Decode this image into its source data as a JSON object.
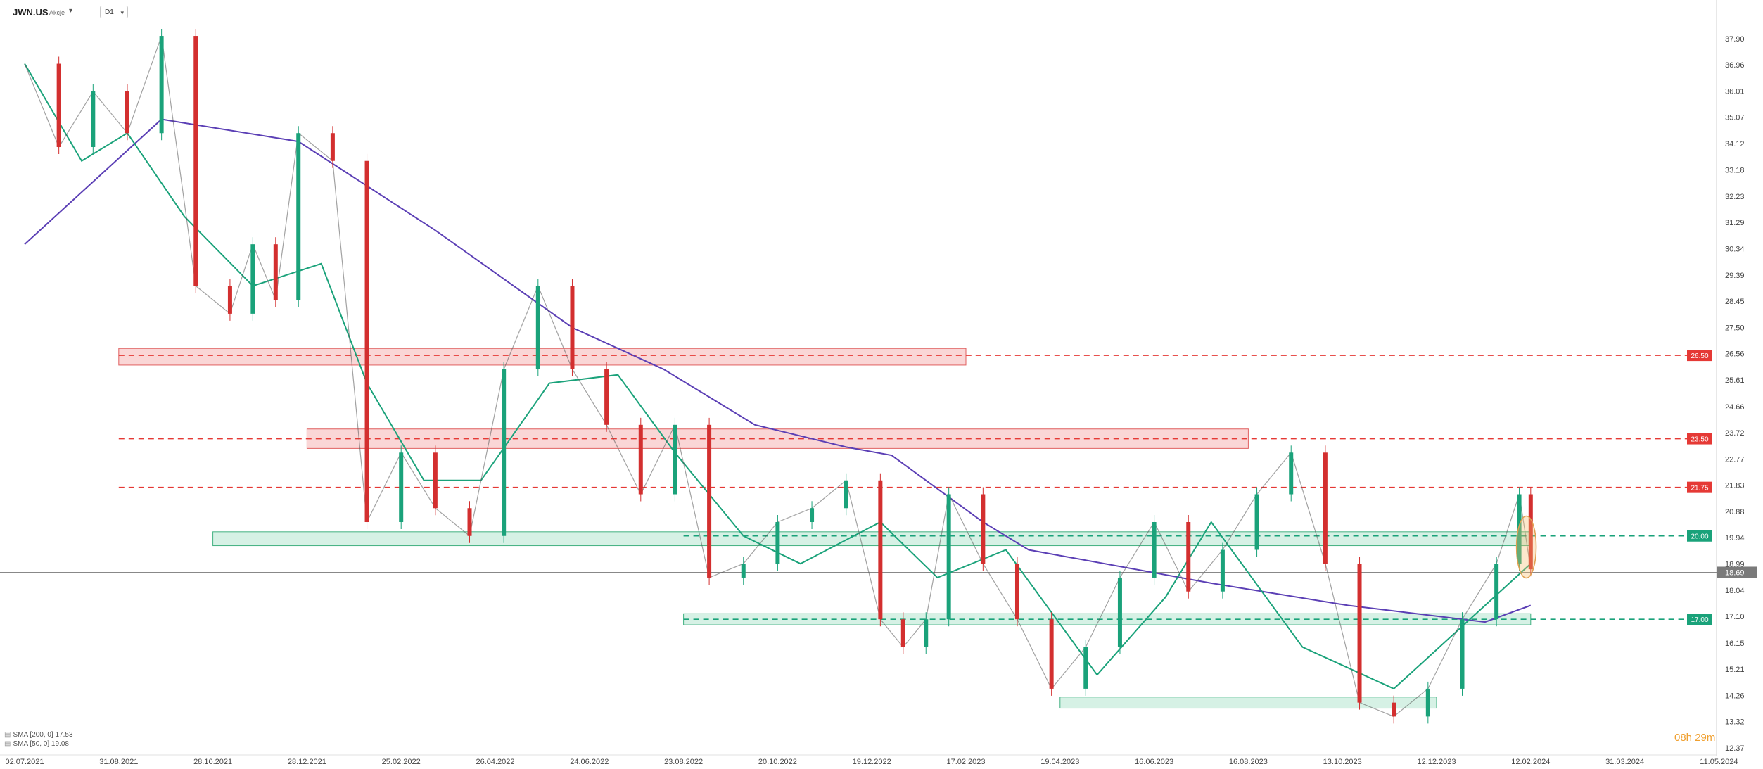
{
  "header": {
    "symbol": "JWN.US",
    "asset_class": "Akcje",
    "timeframe": "D1"
  },
  "legend": [
    {
      "text": "SMA [200, 0] 17.53",
      "color": "#5b3fb5"
    },
    {
      "text": "SMA [50, 0] 19.08",
      "color": "#1aa27a"
    }
  ],
  "timer": "08h 29m",
  "chart_data": {
    "type": "candlestick",
    "title": "",
    "y_ticks": [
      37.9,
      36.96,
      36.01,
      35.07,
      34.12,
      33.18,
      32.23,
      31.29,
      30.34,
      29.39,
      28.45,
      27.5,
      26.56,
      25.61,
      24.66,
      23.72,
      22.77,
      21.83,
      20.88,
      19.94,
      18.99,
      18.04,
      17.1,
      16.15,
      15.21,
      14.26,
      13.32,
      12.37
    ],
    "x_ticks": [
      "02.07.2021",
      "31.08.2021",
      "28.10.2021",
      "28.12.2021",
      "25.02.2022",
      "26.04.2022",
      "24.06.2022",
      "23.08.2022",
      "20.10.2022",
      "19.12.2022",
      "17.02.2023",
      "19.04.2023",
      "16.06.2023",
      "16.08.2023",
      "13.10.2023",
      "12.12.2023",
      "12.02.2024",
      "31.03.2024",
      "11.05.2024"
    ],
    "ylim": [
      12.3,
      38.6
    ],
    "last_price": 18.69,
    "price_levels": [
      {
        "value": 26.5,
        "label": "26.50",
        "color": "#e53935"
      },
      {
        "value": 23.5,
        "label": "23.50",
        "color": "#e53935"
      },
      {
        "value": 21.75,
        "label": "21.75",
        "color": "#e53935"
      },
      {
        "value": 20.0,
        "label": "20.00",
        "color": "#1aa27a"
      },
      {
        "value": 17.0,
        "label": "17.00",
        "color": "#1aa27a"
      }
    ],
    "zones": [
      {
        "from": "31.08.2021",
        "to": "17.02.2023",
        "low": 26.15,
        "high": 26.75,
        "kind": "resistance"
      },
      {
        "from": "28.12.2021",
        "to": "16.08.2023",
        "low": 23.15,
        "high": 23.85,
        "kind": "resistance"
      },
      {
        "from": "28.10.2021",
        "to": "12.02.2024",
        "low": 19.65,
        "high": 20.15,
        "kind": "support"
      },
      {
        "from": "23.08.2022",
        "to": "12.02.2024",
        "low": 16.8,
        "high": 17.2,
        "kind": "support"
      },
      {
        "from": "19.04.2023",
        "to": "12.12.2023",
        "low": 13.8,
        "high": 14.2,
        "kind": "support"
      }
    ],
    "series": [
      {
        "name": "SMA [200, 0]",
        "color": "#5b3fb5",
        "x": [
          0,
          60,
          120,
          180,
          240,
          280,
          320,
          360,
          380,
          420,
          440,
          520,
          580,
          640,
          660
        ],
        "values": [
          30.5,
          35.0,
          34.2,
          31.0,
          27.5,
          26.0,
          24.0,
          23.2,
          22.9,
          20.5,
          19.5,
          18.3,
          17.5,
          16.9,
          17.5
        ]
      },
      {
        "name": "SMA [50, 0]",
        "color": "#1aa27a",
        "x": [
          0,
          25,
          45,
          70,
          100,
          130,
          150,
          175,
          200,
          230,
          260,
          285,
          315,
          340,
          375,
          400,
          430,
          470,
          500,
          520,
          560,
          600,
          640,
          660
        ],
        "values": [
          37.0,
          33.5,
          34.5,
          31.5,
          29.0,
          29.8,
          25.5,
          22.0,
          22.0,
          25.5,
          25.8,
          23.0,
          20.0,
          19.0,
          20.5,
          18.5,
          19.5,
          15.0,
          17.8,
          20.5,
          16.0,
          14.5,
          17.5,
          19.0
        ]
      },
      {
        "name": "Price",
        "color": "#1aa27a",
        "x": [
          0,
          15,
          30,
          45,
          60,
          75,
          90,
          100,
          110,
          120,
          135,
          150,
          165,
          180,
          195,
          210,
          225,
          240,
          255,
          270,
          285,
          300,
          315,
          330,
          345,
          360,
          375,
          385,
          395,
          405,
          420,
          435,
          450,
          465,
          480,
          495,
          510,
          525,
          540,
          555,
          570,
          585,
          600,
          615,
          630,
          645,
          655,
          660
        ],
        "values": [
          37.0,
          34.0,
          36.0,
          34.5,
          38.0,
          29.0,
          28.0,
          30.5,
          28.5,
          34.5,
          33.5,
          20.5,
          23.0,
          21.0,
          20.0,
          26.0,
          29.0,
          26.0,
          24.0,
          21.5,
          24.0,
          18.5,
          19.0,
          20.5,
          21.0,
          22.0,
          17.0,
          16.0,
          17.0,
          21.5,
          19.0,
          17.0,
          14.5,
          16.0,
          18.5,
          20.5,
          18.0,
          19.5,
          21.5,
          23.0,
          19.0,
          14.0,
          13.5,
          14.5,
          17.0,
          19.0,
          21.5,
          18.8
        ]
      }
    ]
  }
}
